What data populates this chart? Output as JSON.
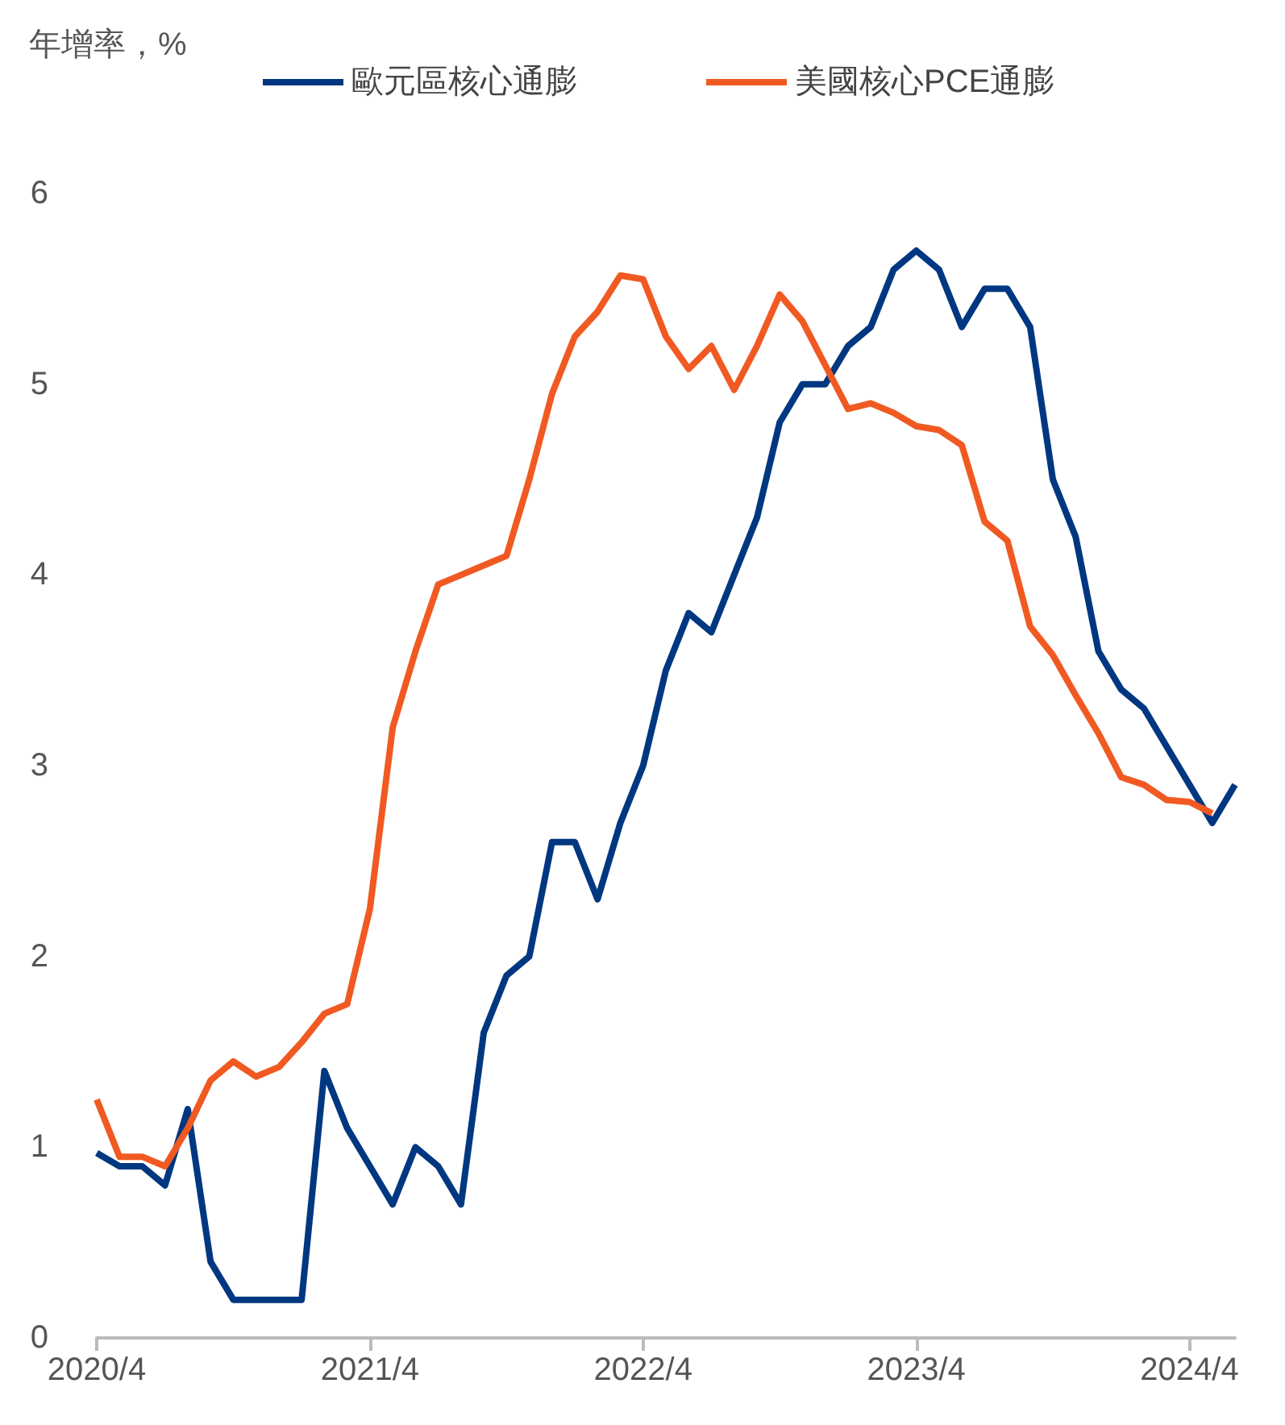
{
  "chart_data": {
    "type": "line",
    "ylabel": "年增率，%",
    "categories": [
      "2020/4",
      null,
      null,
      null,
      null,
      null,
      null,
      null,
      null,
      null,
      null,
      null,
      "2021/4",
      null,
      null,
      null,
      null,
      null,
      null,
      null,
      null,
      null,
      null,
      null,
      "2022/4",
      null,
      null,
      null,
      null,
      null,
      null,
      null,
      null,
      null,
      null,
      null,
      "2023/4",
      null,
      null,
      null,
      null,
      null,
      null,
      null,
      null,
      null,
      null,
      null,
      "2024/4",
      null,
      null
    ],
    "series": [
      {
        "name": "歐元區核心通膨",
        "color": "#003781",
        "values": [
          0.97,
          0.9,
          0.9,
          0.8,
          1.2,
          0.4,
          0.2,
          0.2,
          0.2,
          0.2,
          1.4,
          1.1,
          0.9,
          0.7,
          1.0,
          0.9,
          0.7,
          1.6,
          1.9,
          2.0,
          2.6,
          2.6,
          2.3,
          2.7,
          3.0,
          3.5,
          3.8,
          3.7,
          4.0,
          4.3,
          4.8,
          5.0,
          5.0,
          5.2,
          5.3,
          5.6,
          5.7,
          5.6,
          5.3,
          5.5,
          5.5,
          5.3,
          4.5,
          4.2,
          3.6,
          3.4,
          3.3,
          3.1,
          2.9,
          2.7,
          2.9
        ]
      },
      {
        "name": "美國核心PCE通膨",
        "color": "#f05a22",
        "values": [
          1.25,
          0.95,
          0.95,
          0.9,
          1.1,
          1.35,
          1.45,
          1.37,
          1.42,
          1.55,
          1.7,
          1.75,
          2.25,
          3.2,
          3.6,
          3.95,
          4.0,
          4.05,
          4.1,
          4.5,
          4.95,
          5.25,
          5.38,
          5.57,
          5.55,
          5.25,
          5.08,
          5.2,
          4.97,
          5.2,
          5.47,
          5.33,
          5.1,
          4.87,
          4.9,
          4.85,
          4.78,
          4.76,
          4.68,
          4.28,
          4.18,
          3.73,
          3.58,
          3.37,
          3.17,
          2.94,
          2.9,
          2.82,
          2.81,
          2.75,
          null
        ]
      }
    ],
    "ylim": [
      0,
      6
    ],
    "yticks": [
      0,
      1,
      2,
      3,
      4,
      5,
      6
    ],
    "grid": false,
    "legend": "top",
    "marker": "none",
    "line_style": "solid"
  }
}
